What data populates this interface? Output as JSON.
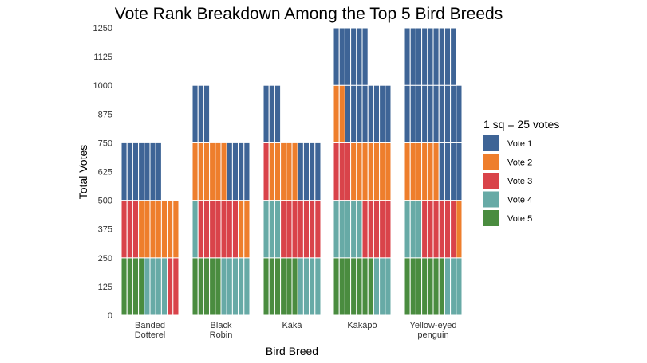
{
  "chart_data": {
    "type": "bar",
    "subtype": "stacked waffle",
    "title": "Vote Rank Breakdown Among the Top 5 Bird Breeds",
    "xlabel": "Bird Breed",
    "ylabel": "Total Votes",
    "ylim": [
      0,
      1250
    ],
    "yticks": [
      0,
      125,
      250,
      375,
      500,
      625,
      750,
      875,
      1000,
      1125,
      1250
    ],
    "grid": false,
    "categories": [
      [
        "Banded",
        "Dotterel"
      ],
      [
        "Black",
        "Robin"
      ],
      [
        "Kākā"
      ],
      [
        "Kākāpō"
      ],
      [
        "Yellow-eyed",
        "penguin"
      ]
    ],
    "legend": {
      "title": "1 sq = 25 votes",
      "placement": "right"
    },
    "votes_per_square": 25,
    "series": [
      {
        "name": "Vote 1",
        "color": "#3e6496",
        "values": [
          175,
          175,
          175,
          350,
          575
        ]
      },
      {
        "name": "Vote 2",
        "color": "#ee7e2c",
        "values": [
          175,
          200,
          125,
          225,
          175
        ]
      },
      {
        "name": "Vote 3",
        "color": "#d9434a",
        "values": [
          125,
          175,
          200,
          200,
          150
        ]
      },
      {
        "name": "Vote 4",
        "color": "#67aaa6",
        "values": [
          100,
          150,
          175,
          200,
          150
        ]
      },
      {
        "name": "Vote 5",
        "color": "#4a8c3f",
        "values": [
          100,
          125,
          150,
          175,
          175
        ]
      }
    ]
  }
}
